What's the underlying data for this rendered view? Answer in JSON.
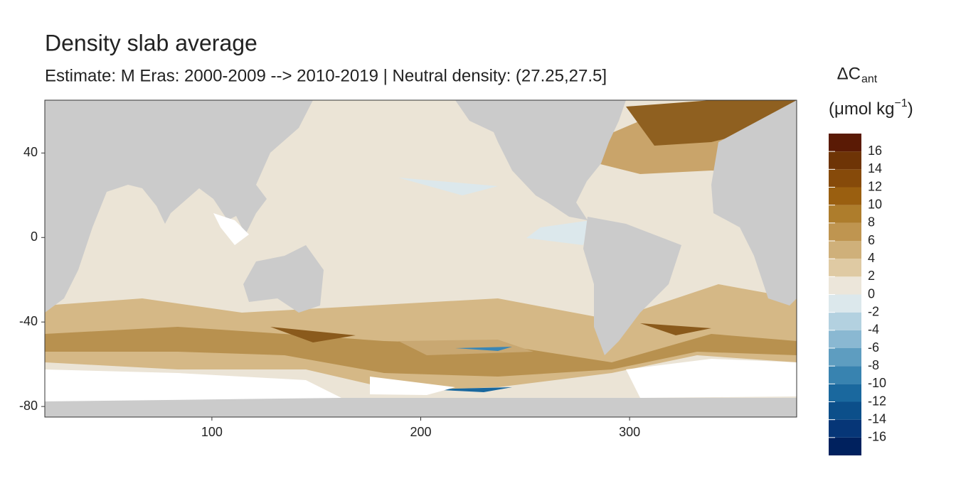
{
  "chart_data": {
    "type": "raster-map",
    "title": "Density slab average",
    "subtitle": "Estimate: M Eras: 2000-2009 --> 2010-2019 | Neutral density: (27.25,27.5]",
    "xlim": [
      20,
      380
    ],
    "xticks": [
      100,
      200,
      300
    ],
    "ylim": [
      -85,
      65
    ],
    "yticks": [
      40,
      0,
      -40,
      -80
    ],
    "legend": {
      "title": "ΔC",
      "title_subscript": "ant",
      "unit": "(μmol kg",
      "unit_superscript": "−1",
      "unit_close": ")",
      "limits": [
        -18,
        18
      ],
      "breaks": [
        -16,
        -14,
        -12,
        -10,
        -8,
        -6,
        -4,
        -2,
        0,
        2,
        4,
        6,
        8,
        10,
        12,
        14,
        16
      ],
      "colors": [
        "#00215e",
        "#063677",
        "#0c4f8a",
        "#1a689e",
        "#3883b0",
        "#5e9dc0",
        "#8ab8d2",
        "#b3d1e0",
        "#dce8ec",
        "#ece6da",
        "#dfcaa3",
        "#cfb07a",
        "#bf9550",
        "#ae7d2c",
        "#9a5f10",
        "#864a0a",
        "#6e3406",
        "#5a1a05"
      ]
    }
  }
}
